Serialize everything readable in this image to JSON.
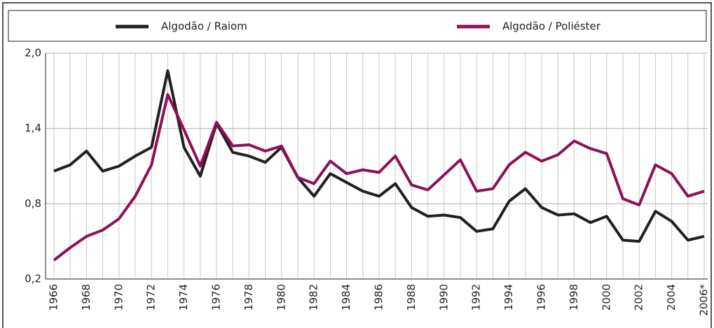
{
  "chart_data": {
    "type": "line",
    "categories": [
      "1966",
      null,
      "1968",
      null,
      "1970",
      null,
      "1972",
      null,
      "1974",
      null,
      "1976",
      null,
      "1978",
      null,
      "1980",
      null,
      "1982",
      null,
      "1984",
      null,
      "1986",
      null,
      "1988",
      null,
      "1990",
      null,
      "1992",
      null,
      "1994",
      null,
      "1996",
      null,
      "1998",
      null,
      "2000",
      null,
      "2002",
      null,
      "2004",
      null,
      "2006*"
    ],
    "series": [
      {
        "name": "Algodão / Raiom",
        "color": "#231f20",
        "values": [
          1.06,
          1.11,
          1.22,
          1.06,
          1.1,
          1.18,
          1.25,
          1.86,
          1.25,
          1.02,
          1.44,
          1.21,
          1.18,
          1.13,
          1.25,
          1.01,
          0.86,
          1.04,
          0.97,
          0.9,
          0.86,
          0.96,
          0.77,
          0.7,
          0.71,
          0.69,
          0.58,
          0.6,
          0.82,
          0.92,
          0.77,
          0.71,
          0.72,
          0.65,
          0.7,
          0.51,
          0.5,
          0.74,
          0.66,
          0.51,
          0.54
        ]
      },
      {
        "name": "Algodão / Poliéster",
        "color": "#8e1056",
        "values": [
          0.35,
          0.45,
          0.54,
          0.59,
          0.68,
          0.86,
          1.11,
          1.67,
          1.39,
          1.1,
          1.45,
          1.26,
          1.27,
          1.22,
          1.26,
          1.01,
          0.96,
          1.14,
          1.04,
          1.07,
          1.05,
          1.18,
          0.95,
          0.91,
          1.03,
          1.15,
          0.9,
          0.92,
          1.11,
          1.21,
          1.14,
          1.19,
          1.3,
          1.24,
          1.2,
          0.84,
          0.79,
          1.11,
          1.04,
          0.86,
          0.9
        ]
      }
    ],
    "ylim": [
      0.2,
      2.0
    ],
    "yticks": [
      {
        "value": 0.2,
        "label": "0,2"
      },
      {
        "value": 0.8,
        "label": "0,8"
      },
      {
        "value": 1.4,
        "label": "1,4"
      },
      {
        "value": 2.0,
        "label": "2,0"
      }
    ],
    "grid": true,
    "legend": "top"
  }
}
